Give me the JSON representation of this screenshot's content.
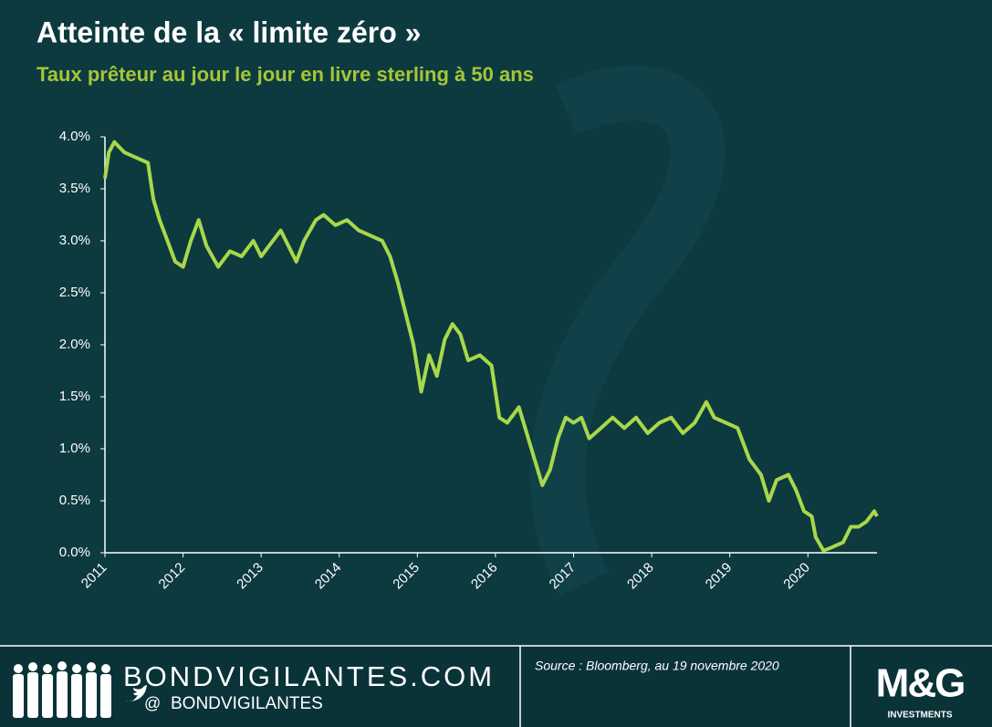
{
  "chart_data": {
    "type": "line",
    "title": "Atteinte de la « limite zéro »",
    "subtitle": "Taux prêteur au jour le jour en livre sterling à 50 ans",
    "color": "#a8d84a",
    "x": [
      2011.0,
      2011.05,
      2011.12,
      2011.25,
      2011.4,
      2011.55,
      2011.62,
      2011.7,
      2011.8,
      2011.9,
      2012.0,
      2012.1,
      2012.2,
      2012.3,
      2012.45,
      2012.6,
      2012.75,
      2012.9,
      2013.0,
      2013.1,
      2013.25,
      2013.35,
      2013.45,
      2013.55,
      2013.7,
      2013.8,
      2013.95,
      2014.1,
      2014.25,
      2014.4,
      2014.55,
      2014.65,
      2014.75,
      2014.85,
      2014.95,
      2015.05,
      2015.15,
      2015.25,
      2015.35,
      2015.45,
      2015.55,
      2015.65,
      2015.8,
      2015.95,
      2016.05,
      2016.15,
      2016.3,
      2016.4,
      2016.5,
      2016.6,
      2016.7,
      2016.8,
      2016.9,
      2017.0,
      2017.1,
      2017.2,
      2017.35,
      2017.5,
      2017.65,
      2017.8,
      2017.95,
      2018.1,
      2018.25,
      2018.4,
      2018.55,
      2018.7,
      2018.8,
      2018.95,
      2019.1,
      2019.25,
      2019.4,
      2019.5,
      2019.6,
      2019.75,
      2019.85,
      2019.95,
      2020.05,
      2020.1,
      2020.2,
      2020.3,
      2020.45,
      2020.55,
      2020.65,
      2020.75,
      2020.85,
      2020.885
    ],
    "values": [
      3.6,
      3.85,
      3.95,
      3.85,
      3.8,
      3.75,
      3.4,
      3.2,
      3.0,
      2.8,
      2.75,
      3.0,
      3.2,
      2.95,
      2.75,
      2.9,
      2.85,
      3.0,
      2.85,
      2.95,
      3.1,
      2.95,
      2.8,
      3.0,
      3.2,
      3.25,
      3.15,
      3.2,
      3.1,
      3.05,
      3.0,
      2.85,
      2.6,
      2.3,
      2.0,
      1.55,
      1.9,
      1.7,
      2.05,
      2.2,
      2.1,
      1.85,
      1.9,
      1.8,
      1.3,
      1.25,
      1.4,
      1.15,
      0.9,
      0.65,
      0.8,
      1.1,
      1.3,
      1.25,
      1.3,
      1.1,
      1.2,
      1.3,
      1.2,
      1.3,
      1.15,
      1.25,
      1.3,
      1.15,
      1.25,
      1.45,
      1.3,
      1.25,
      1.2,
      0.9,
      0.75,
      0.5,
      0.7,
      0.75,
      0.6,
      0.4,
      0.35,
      0.15,
      0.02,
      0.05,
      0.1,
      0.25,
      0.25,
      0.3,
      0.4,
      0.35
    ],
    "xlim": [
      2011,
      2020.885
    ],
    "xticks": [
      2011,
      2012,
      2013,
      2014,
      2015,
      2016,
      2017,
      2018,
      2019,
      2020
    ],
    "ylim": [
      0,
      4
    ],
    "yticks": [
      {
        "value": 0,
        "label": "0.0%"
      },
      {
        "value": 0.5,
        "label": "0.5%"
      },
      {
        "value": 1,
        "label": "1.0%"
      },
      {
        "value": 1.5,
        "label": "1.5%"
      },
      {
        "value": 2,
        "label": "2.0%"
      },
      {
        "value": 2.5,
        "label": "2.5%"
      },
      {
        "value": 3,
        "label": "3.0%"
      },
      {
        "value": 3.5,
        "label": "3.5%"
      },
      {
        "value": 4,
        "label": "4.0%"
      }
    ]
  },
  "footer": {
    "site": "BONDVIGILANTES.COM",
    "at": "@",
    "handle": "BONDVIGILANTES",
    "source": "Source : Bloomberg, au 19 novembre 2020",
    "logo": "M&G",
    "logo_sub": "INVESTMENTS"
  }
}
